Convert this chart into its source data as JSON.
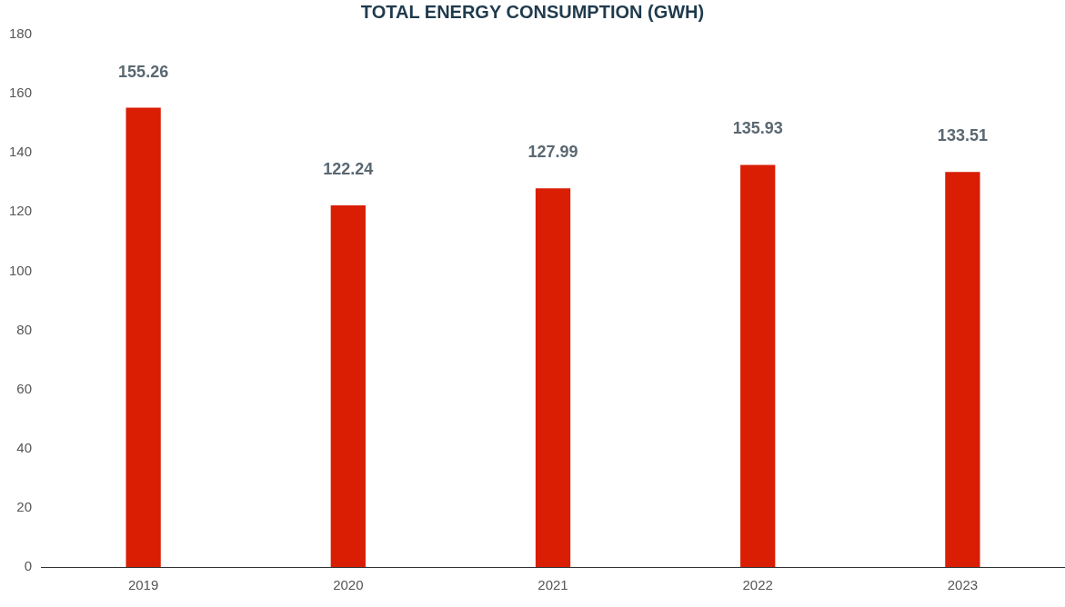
{
  "chart_data": {
    "type": "bar",
    "title": "TOTAL ENERGY CONSUMPTION (GWH)",
    "categories": [
      "2019",
      "2020",
      "2021",
      "2022",
      "2023"
    ],
    "values": [
      155.26,
      122.24,
      127.99,
      135.93,
      133.51
    ],
    "color": "#d91e04",
    "ylim": [
      0,
      180
    ],
    "yticks": [
      0,
      20,
      40,
      60,
      80,
      100,
      120,
      140,
      160,
      180
    ],
    "data_labels": true,
    "grid": false,
    "legend": false
  }
}
